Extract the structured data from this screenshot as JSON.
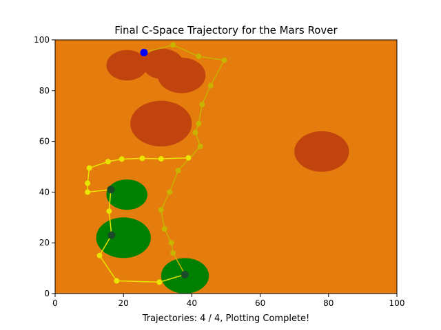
{
  "chart_data": {
    "type": "scatter",
    "title": "Final C-Space Trajectory for the Mars Rover",
    "xlabel": "Trajectories: 4 / 4, Plotting Complete!",
    "ylabel": "",
    "xlim": [
      0,
      100
    ],
    "ylim": [
      0,
      100
    ],
    "x_ticks": [
      "0",
      "20",
      "40",
      "60",
      "80",
      "100"
    ],
    "y_ticks": [
      "0",
      "20",
      "40",
      "60",
      "80",
      "100"
    ],
    "grid": false,
    "legend": "none",
    "background_color": "#e57c0e",
    "obstacles": {
      "color": "#c1440e",
      "ellipses": [
        {
          "cx": 21,
          "cy": 90,
          "rx": 6,
          "ry": 6
        },
        {
          "cx": 31.5,
          "cy": 90.5,
          "rx": 6,
          "ry": 6
        },
        {
          "cx": 37,
          "cy": 86,
          "rx": 7,
          "ry": 7
        },
        {
          "cx": 31,
          "cy": 67,
          "rx": 9,
          "ry": 9
        },
        {
          "cx": 78,
          "cy": 56,
          "rx": 8,
          "ry": 8
        }
      ]
    },
    "goal_regions": {
      "color": "#008000",
      "ellipses": [
        {
          "cx": 21,
          "cy": 39,
          "rx": 6,
          "ry": 6
        },
        {
          "cx": 20,
          "cy": 22,
          "rx": 8,
          "ry": 8
        },
        {
          "cx": 38,
          "cy": 7,
          "rx": 7,
          "ry": 7
        }
      ]
    },
    "start": {
      "x": 26,
      "y": 95,
      "color": "#0000ff"
    },
    "series": [
      {
        "color": "#c8b400",
        "points": [
          [
            26,
            95
          ],
          [
            34.5,
            98
          ],
          [
            42,
            93.5
          ],
          [
            49.5,
            92
          ],
          [
            45.5,
            82
          ],
          [
            43,
            74.5
          ],
          [
            42,
            67
          ],
          [
            41,
            63.5
          ],
          [
            42.5,
            58
          ],
          [
            36,
            48.5
          ],
          [
            33.5,
            40
          ],
          [
            31,
            33
          ],
          [
            32,
            25.5
          ],
          [
            34,
            20
          ],
          [
            34.5,
            16
          ],
          [
            38,
            7.5
          ]
        ]
      },
      {
        "color": "#e8e600",
        "points": [
          [
            38,
            7.5
          ],
          [
            30.5,
            4.5
          ],
          [
            18,
            5
          ],
          [
            13,
            15
          ],
          [
            16.5,
            23
          ],
          [
            15.8,
            32.5
          ],
          [
            16.3,
            41
          ],
          [
            9.5,
            40
          ],
          [
            9.5,
            43.5
          ],
          [
            10,
            49.5
          ],
          [
            15.5,
            52
          ],
          [
            19.5,
            53
          ],
          [
            25.5,
            53.3
          ],
          [
            31,
            53.1
          ],
          [
            39,
            53.5
          ]
        ]
      }
    ],
    "waypoint_markers": {
      "color": "#1a4a2a",
      "points": [
        [
          16.3,
          41
        ],
        [
          16.5,
          23
        ],
        [
          38,
          7.5
        ]
      ]
    }
  }
}
